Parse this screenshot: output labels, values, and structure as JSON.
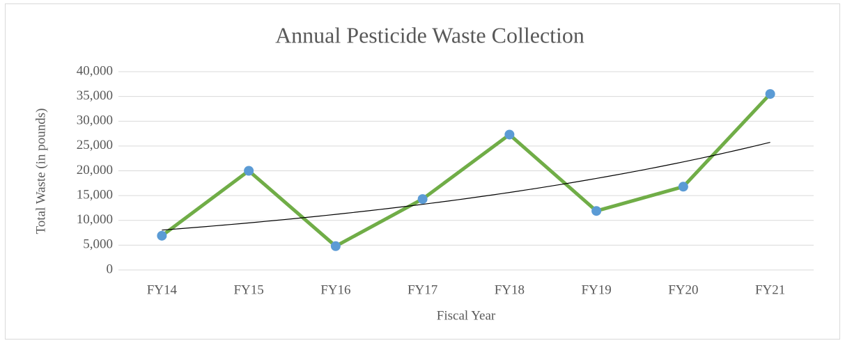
{
  "chart_data": {
    "type": "line",
    "title": "Annual Pesticide Waste Collection",
    "xlabel": "Fiscal Year",
    "ylabel": "Total Waste (in pounds)",
    "categories": [
      "FY14",
      "FY15",
      "FY16",
      "FY17",
      "FY18",
      "FY19",
      "FY20",
      "FY21"
    ],
    "series": [
      {
        "name": "Total Waste",
        "color": "#70ad47",
        "marker_color": "#5b9bd5",
        "values": [
          6900,
          20000,
          4800,
          14300,
          27300,
          11900,
          16800,
          35500
        ]
      }
    ],
    "trendline": "exponential",
    "trendline_color": "#000000",
    "ylim": [
      0,
      40000
    ],
    "yticks": [
      0,
      {
        "value": 5000,
        "label": "5,000"
      },
      {
        "value": 10000,
        "label": "10,000"
      },
      {
        "value": 15000,
        "label": "15,000"
      },
      {
        "value": 20000,
        "label": "20,000"
      },
      {
        "value": 25000,
        "label": "25,000"
      },
      {
        "value": 30000,
        "label": "30,000"
      },
      {
        "value": 35000,
        "label": "35,000"
      },
      {
        "value": 40000,
        "label": "40,000"
      }
    ],
    "grid": true
  }
}
